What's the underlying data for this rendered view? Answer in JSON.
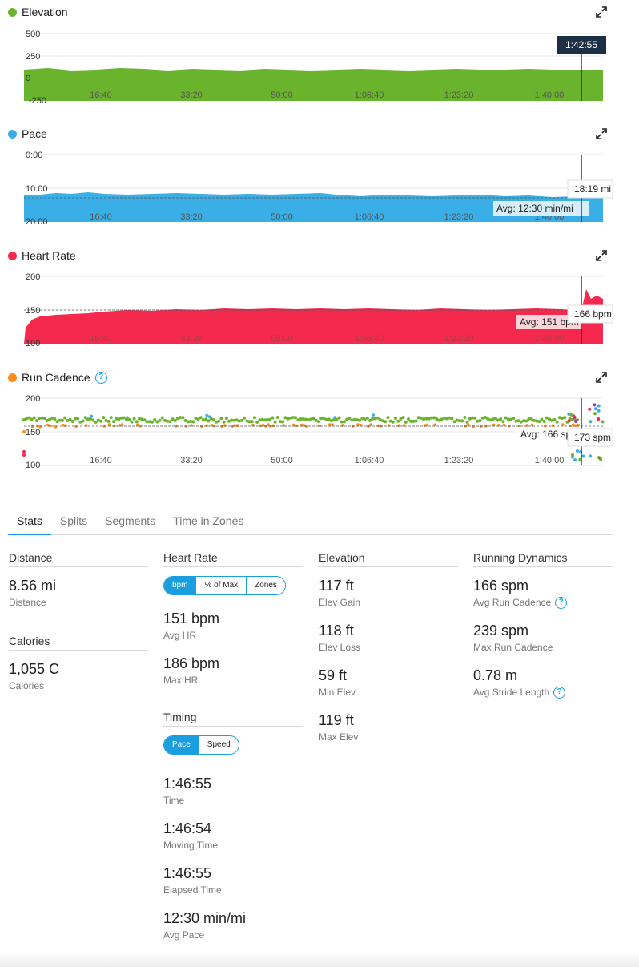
{
  "charts": [
    {
      "title": "Elevation",
      "color": "#6ab42d",
      "icon": "green-dot-icon",
      "yticks": [
        "500",
        "250",
        "0",
        "-250"
      ],
      "xticks": [
        "16:40",
        "33:20",
        "50:00",
        "1:06:40",
        "1:23:20",
        "1:40:00"
      ],
      "cursor_label": "1:42:55"
    },
    {
      "title": "Pace",
      "color": "#3aaee6",
      "icon": "blue-dot-icon",
      "yticks": [
        "0:00",
        "10:00",
        "20:00"
      ],
      "xticks": [
        "16:40",
        "33:20",
        "50:00",
        "1:06:40",
        "1:23:20",
        "1:40:00"
      ],
      "avg_label": "Avg: 12:30 min/mi",
      "cursor_label": "18:19 mi"
    },
    {
      "title": "Heart Rate",
      "color": "#f5294d",
      "icon": "red-dot-icon",
      "yticks": [
        "200",
        "150",
        "100"
      ],
      "xticks": [
        "16:40",
        "33:20",
        "50:00",
        "1:06:40",
        "1:23:20",
        "1:40:00"
      ],
      "avg_label": "Avg: 151 bpm",
      "cursor_label": "166 bpm"
    },
    {
      "title": "Run Cadence",
      "color": "#ff8c1a",
      "icon": "orange-dot-icon",
      "yticks": [
        "200",
        "150",
        "100"
      ],
      "xticks": [
        "16:40",
        "33:20",
        "50:00",
        "1:06:40",
        "1:23:20",
        "1:40:00"
      ],
      "avg_label": "Avg: 166 spm",
      "cursor_label": "173 spm"
    }
  ],
  "tabs": [
    "Stats",
    "Splits",
    "Segments",
    "Time in Zones"
  ],
  "stats": {
    "distance": {
      "title": "Distance",
      "value": "8.56 mi",
      "label": "Distance"
    },
    "calories": {
      "title": "Calories",
      "value": "1,055 C",
      "label": "Calories"
    },
    "heart_rate": {
      "title": "Heart Rate",
      "toggle": [
        "bpm",
        "% of Max",
        "Zones"
      ],
      "items": [
        {
          "value": "151 bpm",
          "label": "Avg HR"
        },
        {
          "value": "186 bpm",
          "label": "Max HR"
        }
      ]
    },
    "timing": {
      "title": "Timing",
      "toggle": [
        "Pace",
        "Speed"
      ],
      "items": [
        {
          "value": "1:46:55",
          "label": "Time"
        },
        {
          "value": "1:46:54",
          "label": "Moving Time"
        },
        {
          "value": "1:46:55",
          "label": "Elapsed Time"
        },
        {
          "value": "12:30 min/mi",
          "label": "Avg Pace"
        }
      ]
    },
    "elevation": {
      "title": "Elevation",
      "items": [
        {
          "value": "117 ft",
          "label": "Elev Gain"
        },
        {
          "value": "118 ft",
          "label": "Elev Loss"
        },
        {
          "value": "59 ft",
          "label": "Min Elev"
        },
        {
          "value": "119 ft",
          "label": "Max Elev"
        }
      ]
    },
    "running_dynamics": {
      "title": "Running Dynamics",
      "items": [
        {
          "value": "166 spm",
          "label": "Avg Run Cadence"
        },
        {
          "value": "239 spm",
          "label": "Max Run Cadence"
        },
        {
          "value": "0.78 m",
          "label": "Avg Stride Length"
        }
      ]
    }
  }
}
